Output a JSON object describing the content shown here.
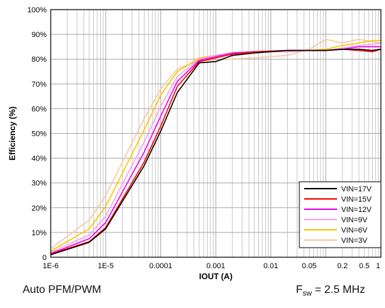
{
  "chart_data": {
    "type": "line",
    "xlabel": "IOUT (A)",
    "ylabel": "Efficiency (%)",
    "x_scale": "log",
    "xlim": [
      1e-06,
      1
    ],
    "ylim": [
      0,
      100
    ],
    "x_ticks": [
      {
        "value": 1e-06,
        "label": "1E-6"
      },
      {
        "value": 1e-05,
        "label": "1E-5"
      },
      {
        "value": 0.0001,
        "label": "0.0001"
      },
      {
        "value": 0.001,
        "label": "0.001"
      },
      {
        "value": 0.01,
        "label": "0.01"
      },
      {
        "value": 0.05,
        "label": "0.05"
      },
      {
        "value": 0.2,
        "label": "0.2"
      },
      {
        "value": 0.5,
        "label": "0.5"
      },
      {
        "value": 1,
        "label": "1"
      }
    ],
    "y_ticks": [
      {
        "value": 0,
        "label": "0"
      },
      {
        "value": 10,
        "label": "10%"
      },
      {
        "value": 20,
        "label": "20%"
      },
      {
        "value": 30,
        "label": "30%"
      },
      {
        "value": 40,
        "label": "40%"
      },
      {
        "value": 50,
        "label": "50%"
      },
      {
        "value": 60,
        "label": "60%"
      },
      {
        "value": 70,
        "label": "70%"
      },
      {
        "value": 80,
        "label": "80%"
      },
      {
        "value": 90,
        "label": "90%"
      },
      {
        "value": 100,
        "label": "100%"
      }
    ],
    "grid": true,
    "legend_position": "bottom-right",
    "series": [
      {
        "name": "VIN=17V",
        "color": "#000000",
        "points": [
          [
            1e-06,
            1.0
          ],
          [
            5e-06,
            6.0
          ],
          [
            1e-05,
            11.5
          ],
          [
            5e-05,
            37.0
          ],
          [
            0.0001,
            51.0
          ],
          [
            0.0002,
            66.5
          ],
          [
            0.0005,
            78.5
          ],
          [
            0.001,
            79.0
          ],
          [
            0.002,
            81.5
          ],
          [
            0.005,
            82.5
          ],
          [
            0.02,
            83.5
          ],
          [
            0.05,
            83.5
          ],
          [
            0.1,
            83.5
          ],
          [
            0.2,
            84.0
          ],
          [
            0.4,
            84.0
          ],
          [
            0.7,
            83.5
          ],
          [
            1,
            84.0
          ]
        ]
      },
      {
        "name": "VIN=15V",
        "color": "#ff0000",
        "points": [
          [
            1e-06,
            1.3
          ],
          [
            5e-06,
            6.3
          ],
          [
            1e-05,
            12.0
          ],
          [
            5e-05,
            38.5
          ],
          [
            0.0001,
            53.0
          ],
          [
            0.0002,
            69.0
          ],
          [
            0.0005,
            79.0
          ],
          [
            0.001,
            80.5
          ],
          [
            0.002,
            82.0
          ],
          [
            0.005,
            83.0
          ],
          [
            0.02,
            83.5
          ],
          [
            0.05,
            83.5
          ],
          [
            0.1,
            83.5
          ],
          [
            0.2,
            84.0
          ],
          [
            0.4,
            83.5
          ],
          [
            0.7,
            83.0
          ],
          [
            1,
            84.0
          ]
        ]
      },
      {
        "name": "VIN=12V",
        "color": "#ee00ee",
        "points": [
          [
            1e-06,
            1.5
          ],
          [
            5e-06,
            7.5
          ],
          [
            1e-05,
            14.0
          ],
          [
            5e-05,
            42.5
          ],
          [
            0.0001,
            57.0
          ],
          [
            0.0002,
            71.0
          ],
          [
            0.0005,
            79.5
          ],
          [
            0.001,
            81.0
          ],
          [
            0.002,
            82.5
          ],
          [
            0.005,
            83.0
          ],
          [
            0.02,
            83.5
          ],
          [
            0.05,
            83.5
          ],
          [
            0.1,
            83.5
          ],
          [
            0.2,
            84.0
          ],
          [
            0.4,
            85.0
          ],
          [
            0.7,
            85.0
          ],
          [
            1,
            85.0
          ]
        ]
      },
      {
        "name": "VIN=9V",
        "color": "#f8a0f0",
        "points": [
          [
            1e-06,
            2.0
          ],
          [
            5e-06,
            9.0
          ],
          [
            1e-05,
            16.5
          ],
          [
            5e-05,
            46.5
          ],
          [
            0.0001,
            61.0
          ],
          [
            0.0002,
            73.0
          ],
          [
            0.0005,
            80.0
          ],
          [
            0.001,
            81.5
          ],
          [
            0.002,
            82.5
          ],
          [
            0.005,
            83.0
          ],
          [
            0.02,
            83.0
          ],
          [
            0.05,
            83.5
          ],
          [
            0.1,
            83.5
          ],
          [
            0.2,
            84.5
          ],
          [
            0.4,
            85.5
          ],
          [
            0.7,
            86.0
          ],
          [
            1,
            86.5
          ]
        ]
      },
      {
        "name": "VIN=6V",
        "color": "#f8c800",
        "points": [
          [
            1e-06,
            2.5
          ],
          [
            5e-06,
            11.5
          ],
          [
            1e-05,
            20.5
          ],
          [
            5e-05,
            51.5
          ],
          [
            0.0001,
            65.5
          ],
          [
            0.0002,
            75.0
          ],
          [
            0.0005,
            80.5
          ],
          [
            0.001,
            81.5
          ],
          [
            0.002,
            82.5
          ],
          [
            0.005,
            83.0
          ],
          [
            0.02,
            83.0
          ],
          [
            0.05,
            83.5
          ],
          [
            0.1,
            84.0
          ],
          [
            0.2,
            85.5
          ],
          [
            0.4,
            86.5
          ],
          [
            0.7,
            87.5
          ],
          [
            1,
            87.5
          ]
        ]
      },
      {
        "name": "VIN=3V",
        "color": "#f6c8a0",
        "points": [
          [
            1e-06,
            3.5
          ],
          [
            5e-06,
            15.0
          ],
          [
            1e-05,
            25.0
          ],
          [
            5e-05,
            56.0
          ],
          [
            0.0001,
            68.0
          ],
          [
            0.0002,
            76.0
          ],
          [
            0.0005,
            79.5
          ],
          [
            0.001,
            79.5
          ],
          [
            0.002,
            80.0
          ],
          [
            0.005,
            80.5
          ],
          [
            0.01,
            81.0
          ],
          [
            0.02,
            81.5
          ],
          [
            0.05,
            84.0
          ],
          [
            0.1,
            88.0
          ],
          [
            0.2,
            86.5
          ],
          [
            0.4,
            88.0
          ],
          [
            0.7,
            87.0
          ],
          [
            1,
            86.5
          ]
        ]
      }
    ]
  },
  "footer": {
    "mode": "Auto PFM/PWM",
    "freq_symbol": "F",
    "freq_subscript": "sw",
    "freq_value": " = 2.5 MHz"
  }
}
